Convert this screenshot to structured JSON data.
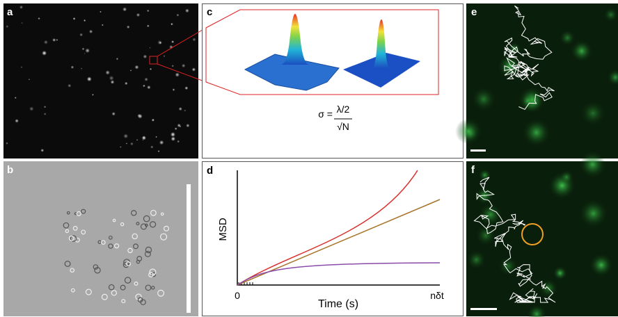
{
  "panels": {
    "a": {
      "label": "a"
    },
    "b": {
      "label": "b"
    },
    "c": {
      "label": "c",
      "formula": {
        "lhs": "σ =",
        "numerator": "λ/2",
        "denominator": "√N"
      }
    },
    "d": {
      "label": "d",
      "y_label": "MSD",
      "x_label": "Time (s)",
      "x_start": "0",
      "x_end": "nδt"
    },
    "e": {
      "label": "e"
    },
    "f": {
      "label": "f"
    }
  }
}
